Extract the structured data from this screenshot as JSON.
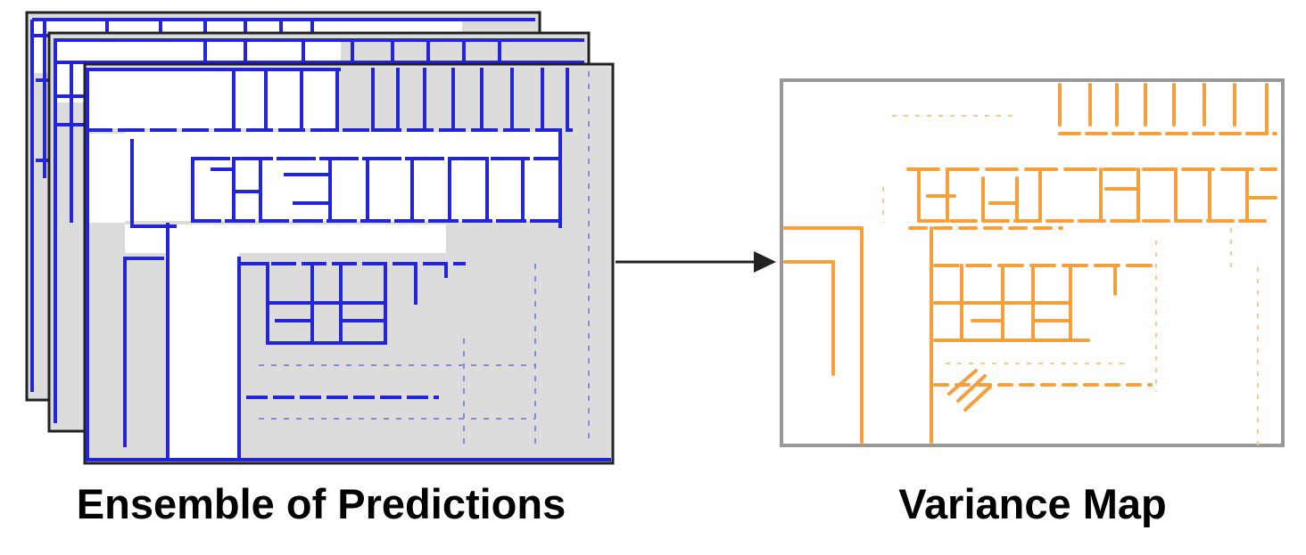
{
  "captions": {
    "ensemble": "Ensemble of Predictions",
    "variance": "Variance Map"
  },
  "colors": {
    "prediction_walls": "#2424d8",
    "unknown_region": "#dcdcdc",
    "variance_walls": "#f5a03c",
    "frame": "#222222",
    "variance_frame": "#999999",
    "arrow": "#222222"
  },
  "icons": {
    "arrow": "right-arrow-icon"
  }
}
